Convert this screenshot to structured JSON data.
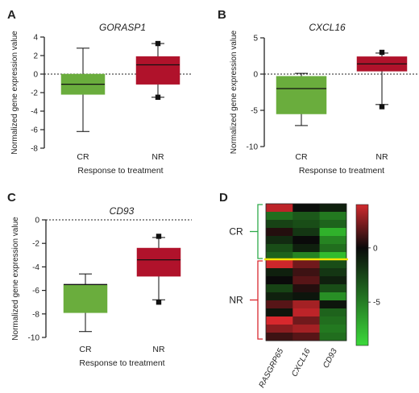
{
  "chart_data": [
    {
      "panel": "A",
      "type": "box",
      "title": "GORASP1",
      "ylabel": "Normalized gene expression value",
      "xlabel": "Response to treatment",
      "ylim": [
        -8,
        4
      ],
      "yticks": [
        -8,
        -6,
        -4,
        -2,
        0,
        2,
        4
      ],
      "categories": [
        "CR",
        "NR"
      ],
      "colors": [
        "#6aad3d",
        "#b0122b"
      ],
      "boxes": [
        {
          "name": "CR",
          "whisker_low": -6.2,
          "q1": -2.2,
          "median": -1.1,
          "q3": 0.0,
          "whisker_high": 2.8,
          "outliers": []
        },
        {
          "name": "NR",
          "whisker_low": -2.5,
          "q1": -1.1,
          "median": 1.0,
          "q3": 1.9,
          "whisker_high": 3.3,
          "outliers": [
            -2.5,
            3.3
          ]
        }
      ]
    },
    {
      "panel": "B",
      "type": "box",
      "title": "CXCL16",
      "ylabel": "Normalized gene expression value",
      "xlabel": "Response to treatment",
      "ylim": [
        -10,
        5
      ],
      "yticks": [
        -10,
        -5,
        0,
        5
      ],
      "categories": [
        "CR",
        "NR"
      ],
      "colors": [
        "#6aad3d",
        "#b0122b"
      ],
      "boxes": [
        {
          "name": "CR",
          "whisker_low": -7.1,
          "q1": -5.5,
          "median": -2.0,
          "q3": -0.3,
          "whisker_high": 0.1,
          "outliers": []
        },
        {
          "name": "NR",
          "whisker_low": -4.2,
          "q1": 0.4,
          "median": 1.4,
          "q3": 2.4,
          "whisker_high": 2.9,
          "outliers": [
            -4.5,
            3.0
          ]
        }
      ]
    },
    {
      "panel": "C",
      "type": "box",
      "title": "CD93",
      "ylabel": "Normalized gene expression value",
      "xlabel": "Response to treatment",
      "ylim": [
        -10,
        0
      ],
      "yticks": [
        -10,
        -8,
        -6,
        -4,
        -2,
        0
      ],
      "categories": [
        "CR",
        "NR"
      ],
      "colors": [
        "#6aad3d",
        "#b0122b"
      ],
      "boxes": [
        {
          "name": "CR",
          "whisker_low": -9.5,
          "q1": -7.9,
          "median": -5.5,
          "q3": -5.5,
          "whisker_high": -4.6,
          "outliers": []
        },
        {
          "name": "NR",
          "whisker_low": -6.8,
          "q1": -4.8,
          "median": -3.4,
          "q3": -2.4,
          "whisker_high": -1.5,
          "outliers": [
            -7.0,
            -1.4
          ]
        }
      ]
    },
    {
      "panel": "D",
      "type": "heatmap",
      "columns": [
        "RASGRP65",
        "CXCL16",
        "CD93"
      ],
      "groups": [
        {
          "name": "CR",
          "rows": 7,
          "bracket_color": "#2eaa4a"
        },
        {
          "name": "NR",
          "rows": 10,
          "bracket_color": "#d9282f"
        }
      ],
      "separator_color": "#f2e600",
      "colorbar": {
        "ticks": [
          0,
          -5
        ],
        "range": [
          -9,
          4
        ]
      },
      "values": [
        [
          3.5,
          -0.2,
          -1.0
        ],
        [
          -4.5,
          -3.5,
          -5.0
        ],
        [
          -2.5,
          -3.0,
          -4.0
        ],
        [
          0.5,
          -2.0,
          -7.5
        ],
        [
          -1.5,
          0.0,
          -5.5
        ],
        [
          -3.0,
          -1.0,
          -4.5
        ],
        [
          -4.0,
          -5.5,
          -8.0
        ],
        [
          3.8,
          2.0,
          -3.0
        ],
        [
          -1.0,
          1.0,
          -2.0
        ],
        [
          0.0,
          1.5,
          -1.0
        ],
        [
          -2.5,
          0.5,
          -3.0
        ],
        [
          -1.0,
          -0.5,
          -6.0
        ],
        [
          1.5,
          3.0,
          -0.5
        ],
        [
          -0.5,
          3.5,
          -4.0
        ],
        [
          4.0,
          2.0,
          -4.5
        ],
        [
          2.5,
          3.0,
          -5.0
        ],
        [
          1.0,
          1.5,
          -4.5
        ]
      ]
    }
  ]
}
